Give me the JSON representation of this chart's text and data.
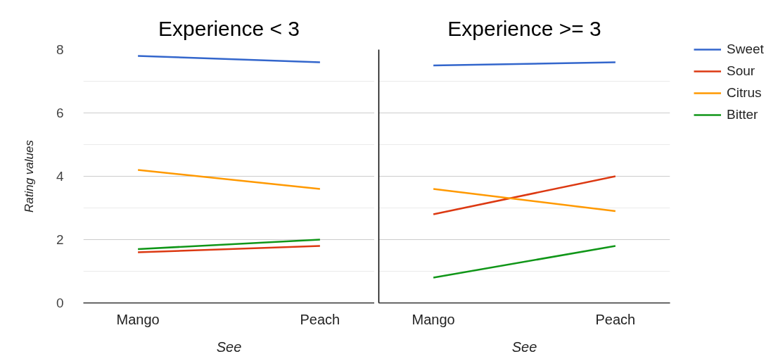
{
  "chart_data": [
    {
      "type": "line",
      "title": "Experience < 3",
      "xlabel": "See",
      "ylabel": "Rating values",
      "categories": [
        "Mango",
        "Peach"
      ],
      "series": [
        {
          "color": "#3366cc",
          "values": [
            7.8,
            7.6
          ]
        },
        {
          "color": "#dc3912",
          "values": [
            1.6,
            1.8
          ]
        },
        {
          "color": "#ff9900",
          "values": [
            4.2,
            3.6
          ]
        },
        {
          "color": "#109618",
          "values": [
            1.7,
            2.0
          ]
        }
      ],
      "ylim": [
        0,
        8
      ],
      "yticks": [
        0,
        {
          "value": 1,
          "label": null
        },
        2,
        {
          "value": 3,
          "label": null
        },
        4,
        {
          "value": 5,
          "label": null
        },
        6,
        {
          "value": 7,
          "label": null
        },
        8
      ],
      "grid": "y"
    },
    {
      "type": "line",
      "title": "Experience >= 3",
      "xlabel": "See",
      "categories": [
        "Mango",
        "Peach"
      ],
      "series": [
        {
          "name": "Sweet",
          "color": "#3366cc",
          "values": [
            7.5,
            7.6
          ]
        },
        {
          "name": "Sour",
          "color": "#dc3912",
          "values": [
            2.8,
            4.0
          ]
        },
        {
          "name": "Citrus",
          "color": "#ff9900",
          "values": [
            3.6,
            2.9
          ]
        },
        {
          "name": "Bitter",
          "color": "#109618",
          "values": [
            0.8,
            1.8
          ]
        }
      ],
      "ylim": [
        0,
        8
      ],
      "yticks": [
        0,
        {
          "value": 1,
          "label": null
        },
        2,
        {
          "value": 3,
          "label": null
        },
        4,
        {
          "value": 5,
          "label": null
        },
        6,
        {
          "value": 7,
          "label": null
        },
        8
      ],
      "grid": "y",
      "legend": "right",
      "tick_labels": "x"
    }
  ]
}
